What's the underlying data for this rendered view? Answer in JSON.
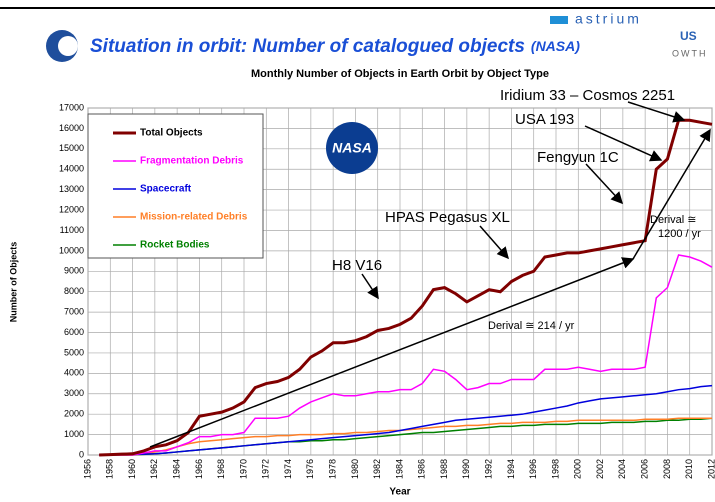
{
  "slide": {
    "title": "Situation in orbit: Number of catalogued objects",
    "source": "(NASA)",
    "logo": "astrium",
    "logo_fragments": [
      "US",
      "OWTH"
    ],
    "badge": "NASA"
  },
  "chart_data": {
    "type": "line",
    "title": "Monthly Number of Objects in Earth Orbit by Object Type",
    "x_label": "Year",
    "y_label": "Number of Objects",
    "x": [
      1957,
      1958,
      1959,
      1960,
      1961,
      1962,
      1963,
      1964,
      1965,
      1966,
      1967,
      1968,
      1969,
      1970,
      1971,
      1972,
      1973,
      1974,
      1975,
      1976,
      1977,
      1978,
      1979,
      1980,
      1981,
      1982,
      1983,
      1984,
      1985,
      1986,
      1987,
      1988,
      1989,
      1990,
      1991,
      1992,
      1993,
      1994,
      1995,
      1996,
      1997,
      1998,
      1999,
      2000,
      2001,
      2002,
      2003,
      2004,
      2005,
      2006,
      2007,
      2008,
      2009,
      2010,
      2011,
      2012
    ],
    "series": [
      {
        "name": "Total Objects",
        "color": "#800000",
        "values": [
          0,
          20,
          40,
          60,
          200,
          400,
          500,
          700,
          1100,
          1900,
          2000,
          2100,
          2300,
          2600,
          3300,
          3500,
          3600,
          3800,
          4200,
          4800,
          5100,
          5500,
          5500,
          5600,
          5800,
          6100,
          6200,
          6400,
          6700,
          7300,
          8100,
          8200,
          7900,
          7500,
          7800,
          8100,
          8000,
          8500,
          8800,
          9000,
          9700,
          9800,
          9900,
          9900,
          10000,
          10100,
          10200,
          10300,
          10400,
          10500,
          14000,
          14500,
          16400,
          16400,
          16300,
          16200
        ]
      },
      {
        "name": "Fragmentation Debris",
        "color": "#ff00ff",
        "values": [
          0,
          0,
          0,
          0,
          100,
          200,
          200,
          400,
          600,
          900,
          900,
          1000,
          1000,
          1100,
          1800,
          1800,
          1800,
          1900,
          2300,
          2600,
          2800,
          3000,
          2900,
          2900,
          3000,
          3100,
          3100,
          3200,
          3200,
          3500,
          4200,
          4100,
          3700,
          3200,
          3300,
          3500,
          3500,
          3700,
          3700,
          3700,
          4200,
          4200,
          4200,
          4300,
          4200,
          4100,
          4200,
          4200,
          4200,
          4300,
          7700,
          8200,
          9800,
          9700,
          9500,
          9200
        ]
      },
      {
        "name": "Spacecraft",
        "color": "#0000dd",
        "values": [
          0,
          5,
          10,
          20,
          40,
          60,
          100,
          150,
          200,
          250,
          300,
          350,
          400,
          450,
          500,
          550,
          600,
          650,
          700,
          750,
          800,
          850,
          900,
          950,
          1000,
          1050,
          1100,
          1200,
          1300,
          1400,
          1500,
          1600,
          1700,
          1750,
          1800,
          1850,
          1900,
          1950,
          2000,
          2100,
          2200,
          2300,
          2400,
          2550,
          2650,
          2750,
          2800,
          2850,
          2900,
          2950,
          3000,
          3100,
          3200,
          3250,
          3350,
          3400
        ]
      },
      {
        "name": "Mission-related Debris",
        "color": "#ff7f27",
        "values": [
          0,
          0,
          0,
          0,
          50,
          150,
          250,
          400,
          550,
          650,
          700,
          750,
          800,
          850,
          900,
          900,
          950,
          950,
          1000,
          1000,
          1000,
          1050,
          1050,
          1100,
          1100,
          1150,
          1200,
          1200,
          1250,
          1300,
          1350,
          1400,
          1400,
          1450,
          1450,
          1500,
          1550,
          1550,
          1600,
          1600,
          1600,
          1650,
          1650,
          1700,
          1700,
          1700,
          1700,
          1700,
          1700,
          1750,
          1750,
          1750,
          1800,
          1800,
          1800,
          1800
        ]
      },
      {
        "name": "Rocket Bodies",
        "color": "#008000",
        "values": [
          0,
          0,
          0,
          0,
          30,
          60,
          100,
          150,
          200,
          250,
          300,
          350,
          400,
          450,
          500,
          550,
          600,
          650,
          650,
          700,
          700,
          750,
          750,
          800,
          850,
          900,
          950,
          1000,
          1050,
          1100,
          1100,
          1150,
          1200,
          1250,
          1300,
          1350,
          1400,
          1400,
          1450,
          1450,
          1500,
          1500,
          1500,
          1550,
          1550,
          1550,
          1600,
          1600,
          1600,
          1650,
          1650,
          1700,
          1700,
          1750,
          1750,
          1800
        ]
      }
    ],
    "xlim": [
      1956,
      2012
    ],
    "xticks": [
      1956,
      1958,
      1960,
      1962,
      1964,
      1966,
      1968,
      1970,
      1972,
      1974,
      1976,
      1978,
      1980,
      1982,
      1984,
      1986,
      1988,
      1990,
      1992,
      1994,
      1996,
      1998,
      2000,
      2002,
      2004,
      2006,
      2008,
      2010,
      2012
    ],
    "ylim": [
      0,
      17000
    ],
    "yticks": [
      0,
      1000,
      2000,
      3000,
      4000,
      5000,
      6000,
      7000,
      8000,
      9000,
      10000,
      11000,
      12000,
      13000,
      14000,
      15000,
      16000,
      17000
    ],
    "grid": true,
    "legend": "upper left",
    "annotations": [
      "Iridium 33 – Cosmos 2251",
      "USA 193",
      "Fengyun 1C",
      "HPAS Pegasus XL",
      "H8 V16",
      "Derival ≅ 214 / yr",
      "Derival ≅",
      "1200 / yr"
    ]
  }
}
